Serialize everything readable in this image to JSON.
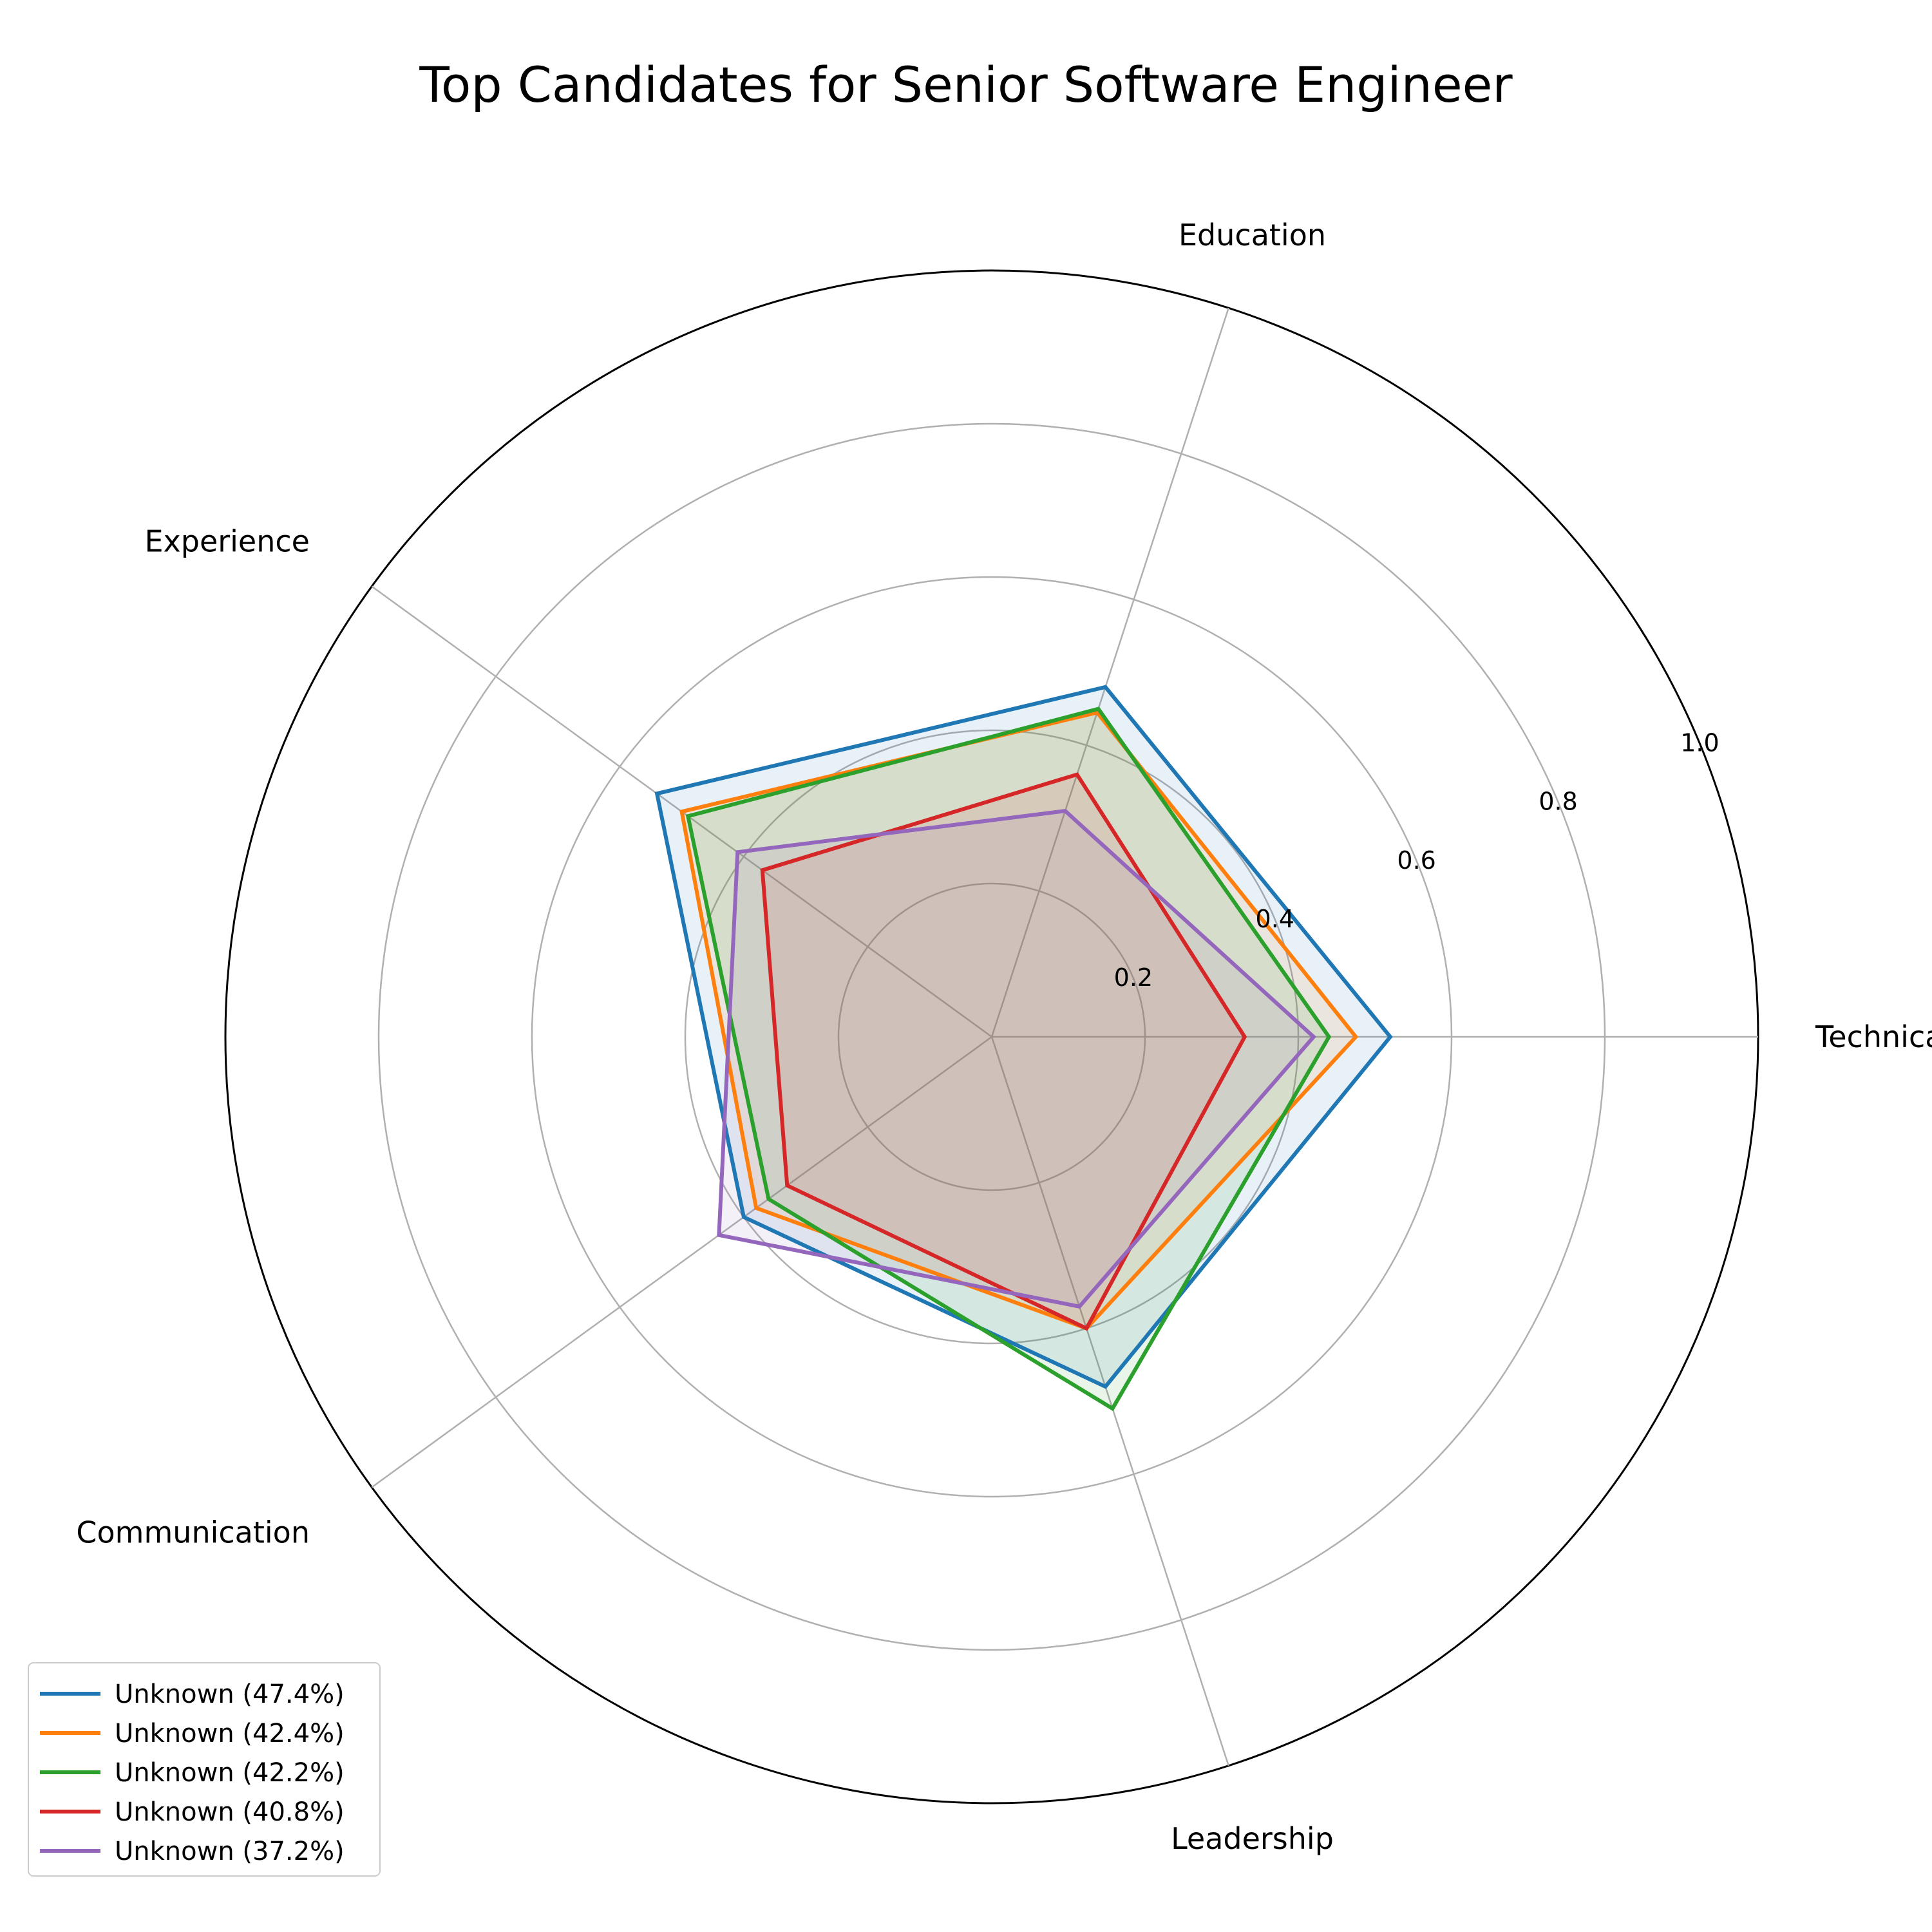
{
  "chart_data": {
    "type": "radar",
    "title": "Top Candidates for Senior Software Engineer",
    "categories": [
      "Technical Skills",
      "Education",
      "Experience",
      "Communication",
      "Leadership"
    ],
    "rlim": [
      0,
      1.0
    ],
    "r_ticks": [
      0.2,
      0.4,
      0.6,
      0.8,
      1.0
    ],
    "r_tick_labels": [
      "0.2",
      "0.4",
      "0.6",
      "0.8",
      "1.0"
    ],
    "grid": true,
    "legend_position": "bottom-left",
    "series": [
      {
        "name": "Unknown (47.4%)",
        "color": "#1f77b4",
        "values": [
          0.52,
          0.48,
          0.54,
          0.4,
          0.48
        ]
      },
      {
        "name": "Unknown (42.4%)",
        "color": "#ff7f0e",
        "values": [
          0.475,
          0.445,
          0.5,
          0.38,
          0.4
        ]
      },
      {
        "name": "Unknown (42.2%)",
        "color": "#2ca02c",
        "values": [
          0.44,
          0.45,
          0.49,
          0.36,
          0.51
        ]
      },
      {
        "name": "Unknown (40.8%)",
        "color": "#d62728",
        "values": [
          0.33,
          0.36,
          0.37,
          0.33,
          0.4
        ]
      },
      {
        "name": "Unknown (37.2%)",
        "color": "#9467bd",
        "values": [
          0.42,
          0.31,
          0.41,
          0.44,
          0.37
        ]
      }
    ]
  }
}
